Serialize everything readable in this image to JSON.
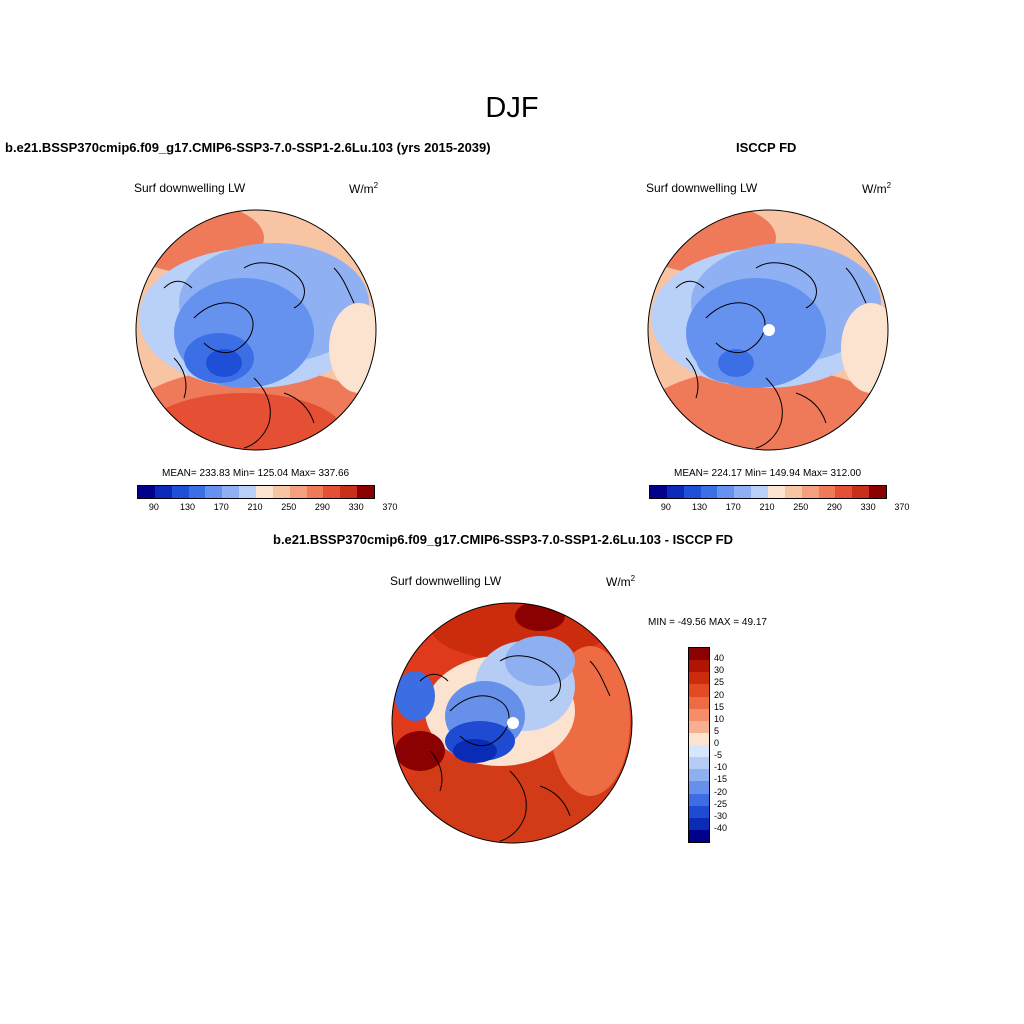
{
  "main_title": "DJF",
  "panels": [
    {
      "title": "b.e21.BSSP370cmip6.f09_g17.CMIP6-SSP3-7.0-SSP1-2.6Lu.103 (yrs 2015-2039)",
      "variable": "Surf downwelling LW",
      "units_base": "W/m",
      "units_exp": "2",
      "stats": "MEAN= 233.83  Min= 125.04  Max= 337.66"
    },
    {
      "title": "ISCCP FD",
      "variable": "Surf downwelling LW",
      "units_base": "W/m",
      "units_exp": "2",
      "stats": "MEAN= 224.17  Min= 149.94  Max= 312.00"
    },
    {
      "title": "b.e21.BSSP370cmip6.f09_g17.CMIP6-SSP3-7.0-SSP1-2.6Lu.103 - ISCCP FD",
      "variable": "Surf downwelling LW",
      "units_base": "W/m",
      "units_exp": "2",
      "stats": "MIN = -49.56 MAX =  49.17"
    }
  ],
  "colorbar_abs": {
    "colors": [
      "#00008b",
      "#0a2bb8",
      "#1f4fd6",
      "#3c6fe6",
      "#6592ee",
      "#8fb1f3",
      "#b9d0f8",
      "#fbe3cf",
      "#f7c4a4",
      "#f3a07f",
      "#ee7a5a",
      "#e54f33",
      "#c8301c",
      "#8b0000"
    ],
    "ticks": [
      "90",
      "130",
      "170",
      "210",
      "250",
      "290",
      "330",
      "370"
    ]
  },
  "colorbar_diff": {
    "colors": [
      "#8b0000",
      "#b01504",
      "#cc2c0e",
      "#e24a22",
      "#ee6c44",
      "#f38e68",
      "#f7b08f",
      "#fbe3cf",
      "#d8e6fb",
      "#b5ccf5",
      "#8fb0f0",
      "#6690ea",
      "#3d6de2",
      "#1f4bd2",
      "#0a2bb5",
      "#00008b"
    ],
    "ticks": [
      "40",
      "30",
      "25",
      "20",
      "15",
      "10",
      "5",
      "0",
      "-5",
      "-10",
      "-15",
      "-20",
      "-25",
      "-30",
      "-40"
    ]
  },
  "maps": [
    {
      "name": "model-map",
      "pole_hole": false
    },
    {
      "name": "obs-map",
      "pole_hole": true
    },
    {
      "name": "diff-map",
      "pole_hole": true
    }
  ]
}
